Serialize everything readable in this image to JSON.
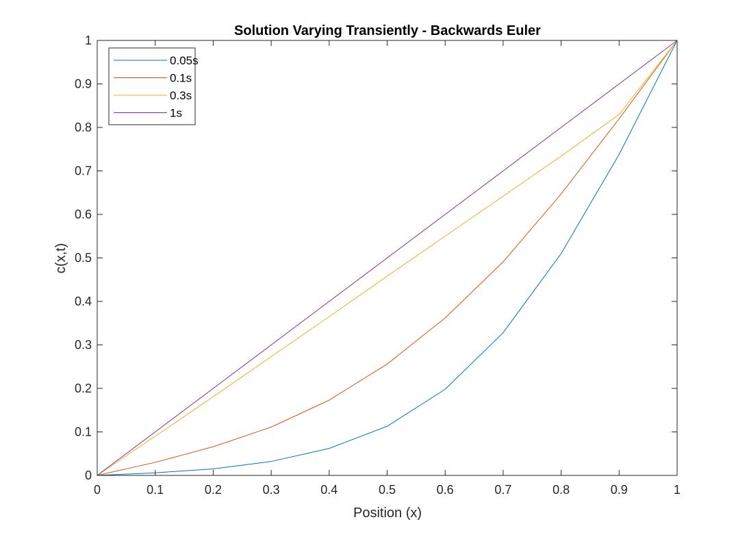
{
  "chart_data": {
    "type": "line",
    "title": "Solution Varying Transiently - Backwards Euler",
    "xlabel": "Position (x)",
    "ylabel": "c(x,t)",
    "xlim": [
      0,
      1
    ],
    "ylim": [
      0,
      1
    ],
    "xticks": [
      0,
      0.1,
      0.2,
      0.3,
      0.4,
      0.5,
      0.6,
      0.7,
      0.8,
      0.9,
      1
    ],
    "xtick_labels": [
      "0",
      "0.1",
      "0.2",
      "0.3",
      "0.4",
      "0.5",
      "0.6",
      "0.7",
      "0.8",
      "0.9",
      "1"
    ],
    "yticks": [
      0,
      0.1,
      0.2,
      0.3,
      0.4,
      0.5,
      0.6,
      0.7,
      0.8,
      0.9,
      1
    ],
    "ytick_labels": [
      "0",
      "0.1",
      "0.2",
      "0.3",
      "0.4",
      "0.5",
      "0.6",
      "0.7",
      "0.8",
      "0.9",
      "1"
    ],
    "grid": false,
    "legend_position": "top-left",
    "x": [
      0,
      0.1,
      0.2,
      0.3,
      0.4,
      0.5,
      0.6,
      0.7,
      0.8,
      0.9,
      1
    ],
    "series": [
      {
        "name": "0.05s",
        "color": "#0072BD",
        "values": [
          0,
          0.006,
          0.015,
          0.032,
          0.062,
          0.113,
          0.198,
          0.328,
          0.51,
          0.738,
          1
        ]
      },
      {
        "name": "0.1s",
        "color": "#D95319",
        "values": [
          0,
          0.03,
          0.066,
          0.111,
          0.173,
          0.256,
          0.362,
          0.491,
          0.647,
          0.82,
          1
        ]
      },
      {
        "name": "0.3s",
        "color": "#EDB120",
        "values": [
          0,
          0.09,
          0.181,
          0.273,
          0.365,
          0.458,
          0.55,
          0.642,
          0.734,
          0.83,
          1
        ]
      },
      {
        "name": "1s",
        "color": "#7E2F8E",
        "values": [
          0,
          0.1,
          0.2,
          0.3,
          0.4,
          0.5,
          0.6,
          0.7,
          0.8,
          0.9,
          1
        ]
      }
    ]
  }
}
